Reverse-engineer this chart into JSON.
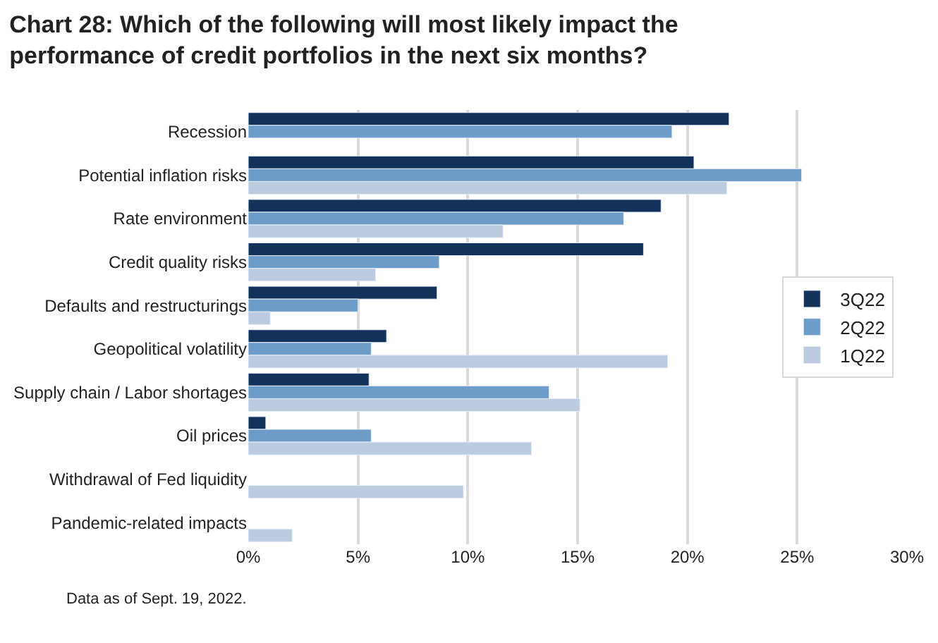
{
  "chart_data": {
    "type": "bar",
    "orientation": "horizontal",
    "title": "Chart 28: Which of the following will most likely impact the performance of credit portfolios in the next six months?",
    "categories": [
      "Recession",
      "Potential inflation risks",
      "Rate environment",
      "Credit quality risks",
      "Defaults and restructurings",
      "Geopolitical volatility",
      "Supply chain / Labor shortages",
      "Oil prices",
      "Withdrawal of Fed liquidity",
      "Pandemic-related impacts"
    ],
    "series": [
      {
        "name": "3Q22",
        "color": "#13325a",
        "values": [
          21.9,
          20.3,
          18.8,
          18.0,
          8.6,
          6.3,
          5.5,
          0.8,
          null,
          null
        ]
      },
      {
        "name": "2Q22",
        "color": "#6d9cc9",
        "values": [
          19.3,
          25.2,
          17.1,
          8.7,
          5.0,
          5.6,
          13.7,
          5.6,
          null,
          null
        ]
      },
      {
        "name": "1Q22",
        "color": "#bccbe0",
        "values": [
          null,
          21.8,
          11.6,
          5.8,
          1.0,
          19.1,
          15.1,
          12.9,
          9.8,
          2.0
        ]
      }
    ],
    "xlim": [
      0,
      30
    ],
    "xticks": [
      {
        "value": 0,
        "label": "0%"
      },
      {
        "value": 5,
        "label": "5%"
      },
      {
        "value": 10,
        "label": "10%"
      },
      {
        "value": 15,
        "label": "15%"
      },
      {
        "value": 20,
        "label": "20%"
      },
      {
        "value": 25,
        "label": "25%"
      },
      {
        "value": 30,
        "label": "30%"
      }
    ],
    "grid": "x",
    "legend": "right",
    "annotations": [
      "Data as of Sept. 19, 2022."
    ]
  }
}
